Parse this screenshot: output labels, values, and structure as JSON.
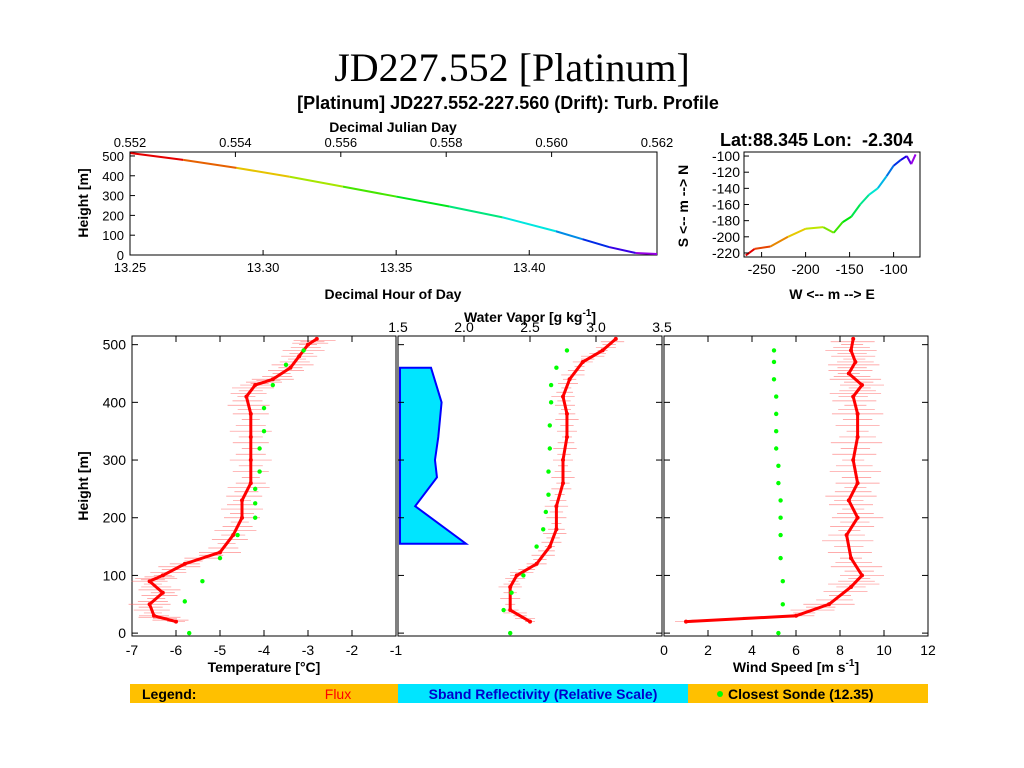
{
  "slide_title": "JD227.552 [Platinum]",
  "figure_title": "[Platinum] JD227.552-227.560 (Drift): Turb. Profile",
  "colors": {
    "flux": "#ff0000",
    "sonde": "#00ff00",
    "sband_fill": "#00e5ff",
    "sband_line": "#0000ff",
    "legend_bg": "#ffc000"
  },
  "chart_data": [
    {
      "type": "line",
      "name": "drift-height-panel",
      "xlabel": "Decimal Hour of Day",
      "ylabel": "Height [m]",
      "xlim": [
        13.25,
        13.448
      ],
      "ylim": [
        0,
        520
      ],
      "xticks": [
        "13.25",
        "13.30",
        "13.35",
        "13.40"
      ],
      "yticks": [
        "0",
        "100",
        "200",
        "300",
        "400",
        "500"
      ],
      "top_axis_label": "Decimal Julian Day",
      "top_ticks": [
        "0.552",
        "0.554",
        "0.556",
        "0.558",
        "0.560",
        "0.562"
      ],
      "x": [
        13.25,
        13.27,
        13.29,
        13.31,
        13.33,
        13.35,
        13.37,
        13.39,
        13.41,
        13.42,
        13.43,
        13.44,
        13.448
      ],
      "y": [
        515,
        480,
        440,
        395,
        345,
        295,
        245,
        190,
        120,
        80,
        40,
        10,
        5
      ]
    },
    {
      "type": "line",
      "name": "drift-track-panel",
      "title": "Lat:88.345 Lon:  -2.304",
      "xlabel": "W <-- m --> E",
      "ylabel": "S <-- m --> N",
      "xlim": [
        -270,
        -70
      ],
      "ylim": [
        -225,
        -95
      ],
      "xticks": [
        "-250",
        "-200",
        "-150",
        "-100"
      ],
      "yticks": [
        "-100",
        "-120",
        "-140",
        "-160",
        "-180",
        "-200",
        "-220"
      ],
      "x": [
        -268,
        -258,
        -240,
        -220,
        -200,
        -180,
        -168,
        -158,
        -148,
        -138,
        -128,
        -118,
        -108,
        -100,
        -92,
        -85,
        -80,
        -75
      ],
      "y": [
        -223,
        -215,
        -212,
        -200,
        -190,
        -188,
        -195,
        -182,
        -175,
        -160,
        -148,
        -140,
        -125,
        -112,
        -105,
        -100,
        -110,
        -98
      ]
    },
    {
      "type": "scatter",
      "name": "temperature-panel",
      "xlabel": "Temperature [°C]",
      "ylabel": "Height [m]",
      "xlim": [
        -7,
        -1
      ],
      "ylim": [
        -5,
        515
      ],
      "xticks": [
        "-7",
        "-6",
        "-5",
        "-4",
        "-3",
        "-2",
        "-1"
      ],
      "yticks": [
        "0",
        "100",
        "200",
        "300",
        "400",
        "500"
      ],
      "series": [
        {
          "name": "Flux",
          "x": [
            -6.0,
            -6.5,
            -6.6,
            -6.3,
            -6.6,
            -6.3,
            -5.8,
            -5.0,
            -4.7,
            -4.5,
            -4.5,
            -4.3,
            -4.3,
            -4.3,
            -4.3,
            -4.4,
            -4.2,
            -3.8,
            -3.4,
            -3.2,
            -3.0,
            -2.8
          ],
          "y": [
            20,
            30,
            50,
            70,
            90,
            100,
            120,
            140,
            170,
            200,
            230,
            260,
            300,
            340,
            380,
            410,
            430,
            440,
            460,
            480,
            500,
            510
          ]
        },
        {
          "name": "Closest Sonde (12.35)",
          "x": [
            -5.7,
            -5.8,
            -5.4,
            -5.0,
            -4.6,
            -4.2,
            -4.2,
            -4.2,
            -4.1,
            -4.1,
            -4.0,
            -4.0,
            -3.8,
            -3.5,
            -3.1
          ],
          "y": [
            0,
            55,
            90,
            130,
            170,
            200,
            225,
            250,
            280,
            320,
            350,
            390,
            430,
            465,
            490
          ]
        }
      ]
    },
    {
      "type": "area",
      "name": "sband-reflectivity-panel",
      "title": "Sband Reflectivity (Relative Scale)",
      "xlim": [
        0,
        1
      ],
      "ylim": [
        -5,
        515
      ],
      "x": [
        0,
        0.47,
        0.63,
        0.58,
        0.53,
        0.56,
        0.23,
        1.0,
        0
      ],
      "y": [
        460,
        460,
        400,
        340,
        300,
        270,
        220,
        155,
        155
      ]
    },
    {
      "type": "scatter",
      "name": "water-vapor-panel",
      "xlabel": "Water Vapor [g kg-1]",
      "xlim": [
        1.5,
        3.5
      ],
      "ylim": [
        -5,
        515
      ],
      "xticks": [
        "1.5",
        "2.0",
        "2.5",
        "3.0",
        "3.5"
      ],
      "series": [
        {
          "name": "Flux",
          "x": [
            2.5,
            2.35,
            2.35,
            2.4,
            2.55,
            2.65,
            2.7,
            2.7,
            2.75,
            2.75,
            2.78,
            2.78,
            2.75,
            2.8,
            2.9,
            3.05,
            3.15
          ],
          "y": [
            20,
            40,
            80,
            100,
            120,
            150,
            180,
            220,
            260,
            300,
            340,
            380,
            410,
            440,
            470,
            490,
            510
          ]
        },
        {
          "name": "Closest Sonde (12.35)",
          "x": [
            2.35,
            2.3,
            2.36,
            2.45,
            2.55,
            2.6,
            2.62,
            2.64,
            2.64,
            2.65,
            2.65,
            2.66,
            2.66,
            2.7,
            2.78
          ],
          "y": [
            0,
            40,
            70,
            100,
            150,
            180,
            210,
            240,
            280,
            320,
            360,
            400,
            430,
            460,
            490
          ]
        }
      ]
    },
    {
      "type": "scatter",
      "name": "wind-speed-panel",
      "xlabel": "Wind Speed [m s-1]",
      "xlim": [
        0,
        12
      ],
      "ylim": [
        -5,
        515
      ],
      "xticks": [
        "0",
        "2",
        "4",
        "6",
        "8",
        "10",
        "12"
      ],
      "series": [
        {
          "name": "Flux",
          "x": [
            1.0,
            6.0,
            7.5,
            8.5,
            9.0,
            8.5,
            8.3,
            8.8,
            8.4,
            8.8,
            8.6,
            8.8,
            8.8,
            8.6,
            9.0,
            8.4,
            8.7,
            8.5,
            8.6
          ],
          "y": [
            20,
            30,
            50,
            80,
            100,
            130,
            170,
            200,
            230,
            260,
            300,
            340,
            380,
            410,
            430,
            450,
            470,
            490,
            510
          ]
        },
        {
          "name": "Closest Sonde (12.35)",
          "x": [
            5.2,
            5.4,
            5.4,
            5.3,
            5.3,
            5.3,
            5.3,
            5.2,
            5.2,
            5.1,
            5.1,
            5.1,
            5.1,
            5.0,
            5.0,
            5.0
          ],
          "y": [
            0,
            50,
            90,
            130,
            170,
            200,
            230,
            260,
            290,
            320,
            350,
            380,
            410,
            440,
            470,
            490
          ]
        }
      ]
    }
  ],
  "wv_unit_exp": "-1",
  "ws_unit_exp": "-1",
  "legend": {
    "label": "Legend:",
    "flux": "Flux",
    "sband": "Sband Reflectivity (Relative Scale)",
    "sonde": "Closest Sonde (12.35)"
  }
}
